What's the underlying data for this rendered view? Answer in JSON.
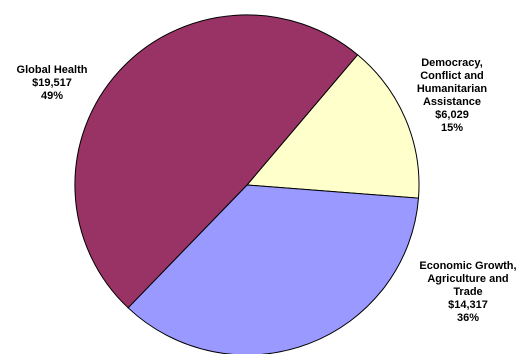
{
  "chart_data": {
    "type": "pie",
    "slices": [
      {
        "label_lines": [
          "Democracy,",
          "Conflict and",
          "Humanitarian",
          "Assistance"
        ],
        "value": 6029,
        "value_text": "$6,029",
        "percent_text": "15%",
        "color": "#FFFFCC"
      },
      {
        "label_lines": [
          "Economic Growth,",
          "Agriculture and",
          "Trade"
        ],
        "value": 14317,
        "value_text": "$14,317",
        "percent_text": "36%",
        "color": "#9999FF"
      },
      {
        "label_lines": [
          "Global Health"
        ],
        "value": 19517,
        "value_text": "$19,517",
        "percent_text": "49%",
        "color": "#993366"
      }
    ],
    "legend": "none",
    "grid": false
  }
}
